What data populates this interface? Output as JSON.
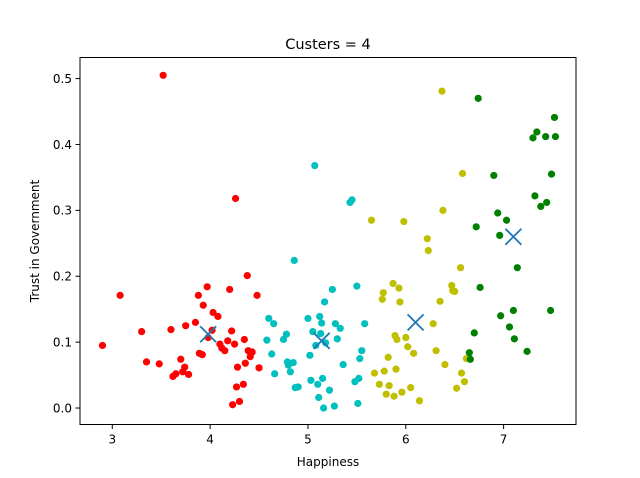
{
  "chart_data": {
    "type": "scatter",
    "title": "Custers = 4",
    "xlabel": "Happiness",
    "ylabel": "Trust in Government",
    "xlim": [
      2.67,
      7.74
    ],
    "ylim": [
      -0.025,
      0.532
    ],
    "xticks": [
      3,
      4,
      5,
      6,
      7
    ],
    "yticks": [
      0.0,
      0.1,
      0.2,
      0.3,
      0.4,
      0.5
    ],
    "ytick_labels": [
      "0.0",
      "0.1",
      "0.2",
      "0.3",
      "0.4",
      "0.5"
    ],
    "grid": false,
    "legend": "none",
    "series": [
      {
        "color": "#ff0000",
        "points": [
          [
            2.9,
            0.095
          ],
          [
            3.08,
            0.171
          ],
          [
            3.3,
            0.116
          ],
          [
            3.35,
            0.07
          ],
          [
            3.48,
            0.067
          ],
          [
            3.52,
            0.505
          ],
          [
            3.6,
            0.119
          ],
          [
            3.62,
            0.048
          ],
          [
            3.65,
            0.052
          ],
          [
            3.7,
            0.074
          ],
          [
            3.72,
            0.055
          ],
          [
            3.74,
            0.062
          ],
          [
            3.75,
            0.125
          ],
          [
            3.78,
            0.051
          ],
          [
            3.85,
            0.13
          ],
          [
            3.88,
            0.171
          ],
          [
            3.89,
            0.083
          ],
          [
            3.92,
            0.081
          ],
          [
            3.93,
            0.156
          ],
          [
            3.97,
            0.184
          ],
          [
            3.98,
            0.107
          ],
          [
            4.02,
            0.118
          ],
          [
            4.03,
            0.145
          ],
          [
            4.08,
            0.139
          ],
          [
            4.1,
            0.097
          ],
          [
            4.12,
            0.091
          ],
          [
            4.15,
            0.087
          ],
          [
            4.18,
            0.102
          ],
          [
            4.2,
            0.18
          ],
          [
            4.22,
            0.117
          ],
          [
            4.23,
            0.005
          ],
          [
            4.25,
            0.097
          ],
          [
            4.26,
            0.318
          ],
          [
            4.27,
            0.032
          ],
          [
            4.28,
            0.062
          ],
          [
            4.3,
            0.01
          ],
          [
            4.34,
            0.036
          ],
          [
            4.35,
            0.104
          ],
          [
            4.36,
            0.068
          ],
          [
            4.38,
            0.201
          ],
          [
            4.39,
            0.087
          ],
          [
            4.41,
            0.078
          ],
          [
            4.43,
            0.085
          ],
          [
            4.48,
            0.171
          ],
          [
            4.5,
            0.061
          ]
        ]
      },
      {
        "color": "#00bfbf",
        "points": [
          [
            4.58,
            0.103
          ],
          [
            4.6,
            0.136
          ],
          [
            4.63,
            0.082
          ],
          [
            4.65,
            0.128
          ],
          [
            4.66,
            0.052
          ],
          [
            4.75,
            0.104
          ],
          [
            4.78,
            0.112
          ],
          [
            4.79,
            0.07
          ],
          [
            4.8,
            0.065
          ],
          [
            4.82,
            0.055
          ],
          [
            4.85,
            0.069
          ],
          [
            4.86,
            0.224
          ],
          [
            4.87,
            0.031
          ],
          [
            4.9,
            0.032
          ],
          [
            5.0,
            0.136
          ],
          [
            5.02,
            0.08
          ],
          [
            5.03,
            0.042
          ],
          [
            5.05,
            0.116
          ],
          [
            5.07,
            0.368
          ],
          [
            5.08,
            0.095
          ],
          [
            5.1,
            0.036
          ],
          [
            5.11,
            0.016
          ],
          [
            5.12,
            0.139
          ],
          [
            5.13,
            0.113
          ],
          [
            5.14,
            0.129
          ],
          [
            5.15,
            0.045
          ],
          [
            5.16,
            0.0
          ],
          [
            5.17,
            0.161
          ],
          [
            5.18,
            0.099
          ],
          [
            5.22,
            0.027
          ],
          [
            5.25,
            0.18
          ],
          [
            5.27,
            0.003
          ],
          [
            5.28,
            0.128
          ],
          [
            5.3,
            0.105
          ],
          [
            5.33,
            0.121
          ],
          [
            5.36,
            0.066
          ],
          [
            5.43,
            0.312
          ],
          [
            5.45,
            0.316
          ],
          [
            5.48,
            0.04
          ],
          [
            5.5,
            0.185
          ],
          [
            5.51,
            0.007
          ],
          [
            5.52,
            0.045
          ],
          [
            5.53,
            0.075
          ],
          [
            5.55,
            0.087
          ],
          [
            5.58,
            0.128
          ]
        ]
      },
      {
        "color": "#bfbf00",
        "points": [
          [
            5.65,
            0.285
          ],
          [
            5.68,
            0.053
          ],
          [
            5.73,
            0.036
          ],
          [
            5.76,
            0.165
          ],
          [
            5.77,
            0.175
          ],
          [
            5.78,
            0.056
          ],
          [
            5.8,
            0.021
          ],
          [
            5.82,
            0.077
          ],
          [
            5.83,
            0.034
          ],
          [
            5.87,
            0.189
          ],
          [
            5.88,
            0.018
          ],
          [
            5.89,
            0.11
          ],
          [
            5.9,
            0.059
          ],
          [
            5.91,
            0.104
          ],
          [
            5.93,
            0.182
          ],
          [
            5.94,
            0.161
          ],
          [
            5.96,
            0.024
          ],
          [
            5.98,
            0.283
          ],
          [
            6.0,
            0.107
          ],
          [
            6.02,
            0.093
          ],
          [
            6.05,
            0.031
          ],
          [
            6.08,
            0.083
          ],
          [
            6.14,
            0.011
          ],
          [
            6.22,
            0.257
          ],
          [
            6.23,
            0.239
          ],
          [
            6.28,
            0.128
          ],
          [
            6.31,
            0.087
          ],
          [
            6.35,
            0.162
          ],
          [
            6.37,
            0.481
          ],
          [
            6.38,
            0.3
          ],
          [
            6.4,
            0.066
          ],
          [
            6.47,
            0.186
          ],
          [
            6.48,
            0.178
          ],
          [
            6.5,
            0.177
          ],
          [
            6.52,
            0.03
          ],
          [
            6.56,
            0.213
          ],
          [
            6.57,
            0.053
          ],
          [
            6.58,
            0.356
          ],
          [
            6.6,
            0.04
          ],
          [
            6.62,
            0.075
          ]
        ]
      },
      {
        "color": "#008000",
        "points": [
          [
            6.65,
            0.084
          ],
          [
            6.66,
            0.074
          ],
          [
            6.7,
            0.114
          ],
          [
            6.72,
            0.275
          ],
          [
            6.74,
            0.47
          ],
          [
            6.76,
            0.183
          ],
          [
            6.9,
            0.353
          ],
          [
            6.94,
            0.296
          ],
          [
            6.96,
            0.262
          ],
          [
            6.97,
            0.14
          ],
          [
            7.03,
            0.285
          ],
          [
            7.06,
            0.123
          ],
          [
            7.1,
            0.148
          ],
          [
            7.11,
            0.105
          ],
          [
            7.14,
            0.213
          ],
          [
            7.24,
            0.086
          ],
          [
            7.3,
            0.41
          ],
          [
            7.32,
            0.322
          ],
          [
            7.34,
            0.419
          ],
          [
            7.38,
            0.306
          ],
          [
            7.43,
            0.412
          ],
          [
            7.44,
            0.312
          ],
          [
            7.48,
            0.148
          ],
          [
            7.49,
            0.355
          ],
          [
            7.52,
            0.441
          ],
          [
            7.53,
            0.412
          ]
        ]
      }
    ],
    "centroids": {
      "color": "#1f77b4",
      "marker": "x",
      "points": [
        [
          3.98,
          0.112
        ],
        [
          5.14,
          0.102
        ],
        [
          6.1,
          0.13
        ],
        [
          7.1,
          0.26
        ]
      ]
    }
  }
}
